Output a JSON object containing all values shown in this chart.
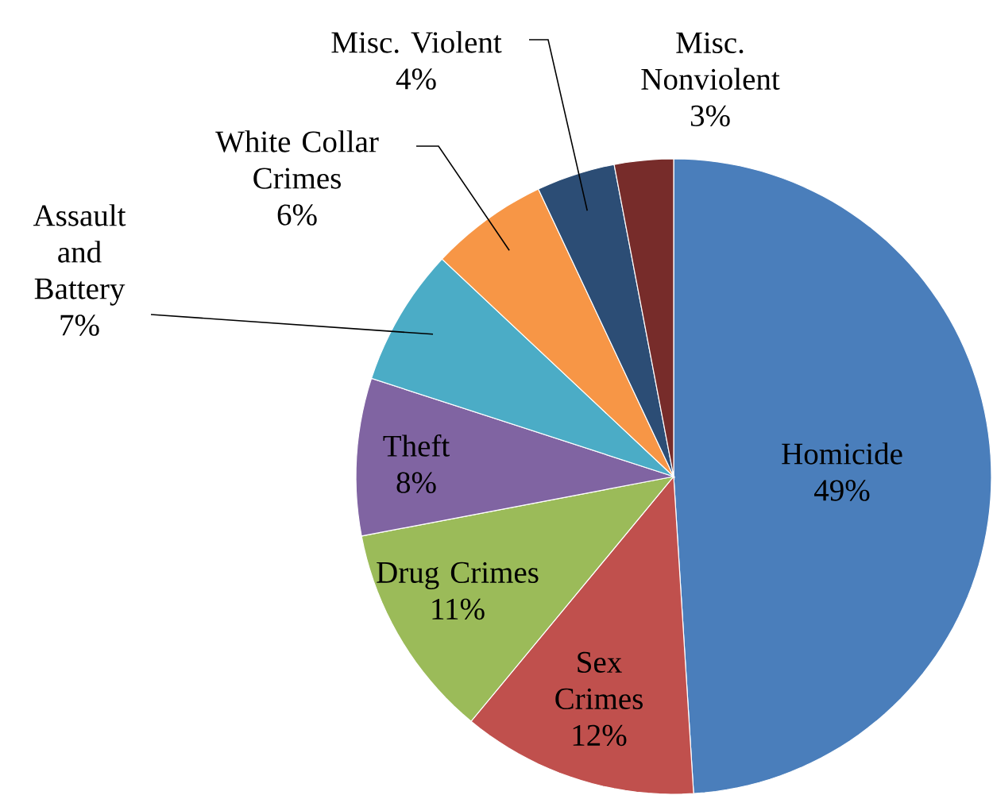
{
  "chart_data": {
    "type": "pie",
    "categories": [
      "Homicide",
      "Sex Crimes",
      "Drug Crimes",
      "Theft",
      "Assault and Battery",
      "White Collar Crimes",
      "Misc. Violent",
      "Misc. Nonviolent"
    ],
    "values": [
      49,
      12,
      11,
      8,
      7,
      6,
      4,
      3
    ],
    "value_labels": [
      "49%",
      "12%",
      "11%",
      "8%",
      "7%",
      "6%",
      "4%",
      "3%"
    ],
    "colors": [
      "#4a7ebb",
      "#c0504d",
      "#9bbb59",
      "#8064a2",
      "#4bacc6",
      "#f79646",
      "#2c4d75",
      "#772c2a"
    ]
  }
}
